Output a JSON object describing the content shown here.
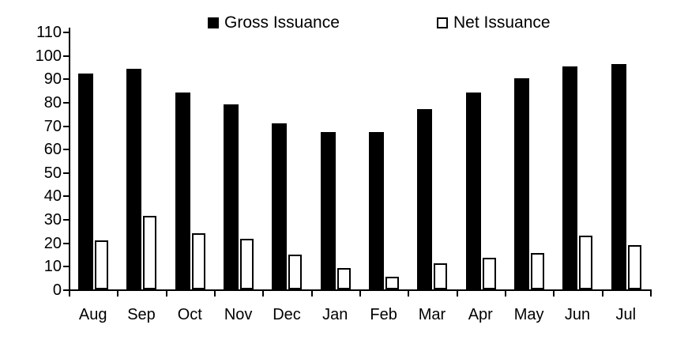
{
  "chart_data": {
    "type": "bar",
    "title": "",
    "xlabel": "",
    "ylabel": "",
    "categories": [
      "Aug",
      "Sep",
      "Oct",
      "Nov",
      "Dec",
      "Jan",
      "Feb",
      "Mar",
      "Apr",
      "May",
      "Jun",
      "Jul"
    ],
    "series": [
      {
        "name": "Gross Issuance",
        "fill": "#000000",
        "stroke": "#000000",
        "values": [
          92,
          94,
          84,
          79,
          71,
          67,
          67,
          77,
          84,
          90,
          95,
          96
        ]
      },
      {
        "name": "Net Issuance",
        "fill": "#ffffff",
        "stroke": "#000000",
        "values": [
          21,
          31.5,
          24,
          21.5,
          15,
          9,
          5.5,
          11,
          13.5,
          15.5,
          23,
          19
        ]
      }
    ],
    "ylim": [
      0,
      110
    ],
    "yticks": [
      0,
      10,
      20,
      30,
      40,
      50,
      60,
      70,
      80,
      90,
      100,
      110
    ],
    "grid": false,
    "legend_position": "top",
    "axis_color": "#000000",
    "text_color": "#000000",
    "background": "#ffffff"
  }
}
